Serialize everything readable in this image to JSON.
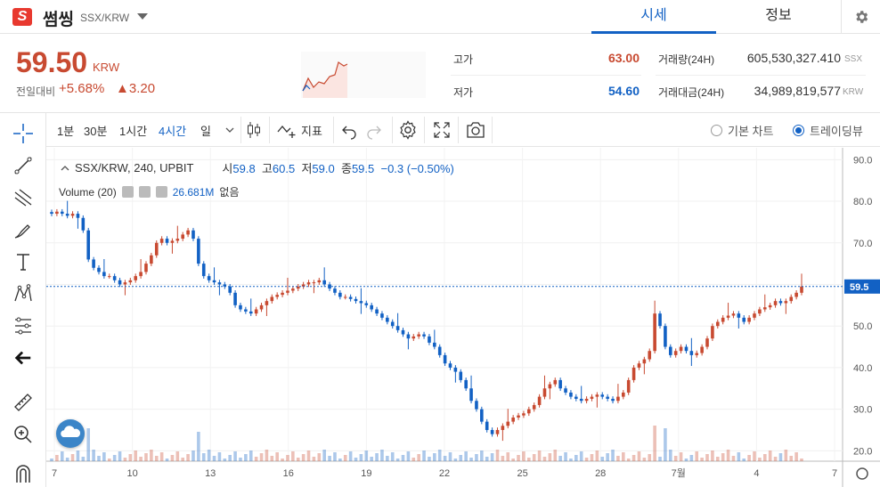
{
  "header": {
    "logo_text": "S",
    "coin_name": "썸씽",
    "pair": "SSX/KRW",
    "tabs": [
      {
        "label": "시세",
        "active": true
      },
      {
        "label": "정보",
        "active": false
      }
    ]
  },
  "summary": {
    "price": "59.50",
    "unit": "KRW",
    "change_label": "전일대비",
    "change_pct": "+5.68%",
    "change_abs": "▲3.20",
    "high_label": "고가",
    "high_value": "63.00",
    "low_label": "저가",
    "low_value": "54.60",
    "volume_label": "거래량(24H)",
    "volume_value": "605,530,327.410",
    "volume_unit": "SSX",
    "amount_label": "거래대금(24H)",
    "amount_value": "34,989,819,577",
    "amount_unit": "KRW"
  },
  "toolbar": {
    "intervals": [
      "1분",
      "30분",
      "1시간",
      "4시간",
      "일"
    ],
    "active_interval": "4시간",
    "indicator_label": "지표",
    "chart_modes": [
      {
        "label": "기본 차트",
        "selected": false
      },
      {
        "label": "트레이딩뷰",
        "selected": true
      }
    ]
  },
  "legend": {
    "pair": "SSX/KRW, 240, UPBIT",
    "open_label": "시",
    "open": "59.8",
    "high_label": "고",
    "high": "60.5",
    "low_label": "저",
    "low": "59.0",
    "close_label": "종",
    "close": "59.5",
    "change": "−0.3 (−0.50%)",
    "volume_label": "Volume (20)",
    "volume_value": "26.681M",
    "volume_extra": "없음"
  },
  "colors": {
    "up": "#c84a31",
    "down": "#1261c4",
    "accent": "#1261c4"
  },
  "chart_data": {
    "type": "candlestick",
    "title": "",
    "yticks": [
      "90.0",
      "80.0",
      "70.0",
      "60.0",
      "50.0",
      "40.0",
      "30.0",
      "20.0"
    ],
    "xticks": [
      "7",
      "10",
      "13",
      "16",
      "19",
      "22",
      "25",
      "28",
      "7월",
      "4",
      "7"
    ],
    "current_price_label": "59.5",
    "ylim": [
      17.5,
      92
    ],
    "close_path": [
      77,
      77.5,
      77,
      76.5,
      77,
      76,
      73,
      66,
      64,
      63,
      62,
      62,
      61,
      60,
      60.5,
      61,
      62,
      63,
      65,
      67,
      70,
      71,
      70,
      70.5,
      71,
      72,
      73,
      71,
      65,
      62,
      61,
      60.5,
      60,
      59.5,
      58,
      55,
      54,
      53.5,
      53,
      54,
      55,
      56,
      57,
      57.5,
      58,
      58.5,
      59,
      59.5,
      60,
      60.5,
      60.5,
      61,
      60,
      59,
      58,
      57,
      57,
      56.5,
      56,
      55.5,
      55,
      54,
      53,
      52,
      51,
      50,
      49,
      48,
      47,
      47.5,
      48,
      47.5,
      46,
      45,
      43,
      41,
      40,
      39,
      37,
      35,
      32,
      30,
      27,
      25,
      24,
      25,
      26,
      27,
      28,
      28.5,
      29,
      30,
      31,
      33,
      35,
      36,
      37,
      35,
      34,
      33,
      32.5,
      32,
      32.5,
      33,
      33.5,
      33,
      32.5,
      32,
      33,
      34,
      37,
      40,
      41,
      42,
      44,
      53,
      50,
      45,
      43,
      44,
      45,
      44,
      43,
      43.5,
      45,
      47,
      50,
      51,
      52,
      52.5,
      53,
      52,
      51,
      52,
      53,
      54,
      54.5,
      55,
      56,
      55.5,
      56,
      57,
      58,
      59.5
    ]
  }
}
